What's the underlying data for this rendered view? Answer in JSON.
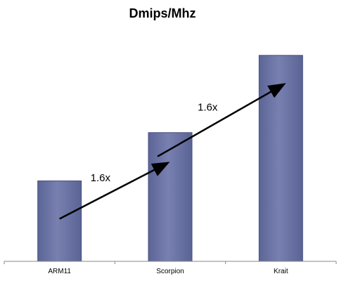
{
  "chart_data": {
    "type": "bar",
    "title": "Dmips/Mhz",
    "xlabel": "",
    "ylabel": "",
    "categories": [
      "ARM11",
      "Scorpion",
      "Krait"
    ],
    "values": [
      1.0,
      1.6,
      2.56
    ],
    "ylim": [
      0,
      2.75
    ],
    "grid": false,
    "legend": "none",
    "bar_color": "#6a74a4",
    "bar_edge_color": "#4a5282",
    "annotations": [
      {
        "text": "1.6x",
        "from": "ARM11",
        "to": "Scorpion"
      },
      {
        "text": "1.6x",
        "from": "Scorpion",
        "to": "Krait"
      }
    ]
  }
}
